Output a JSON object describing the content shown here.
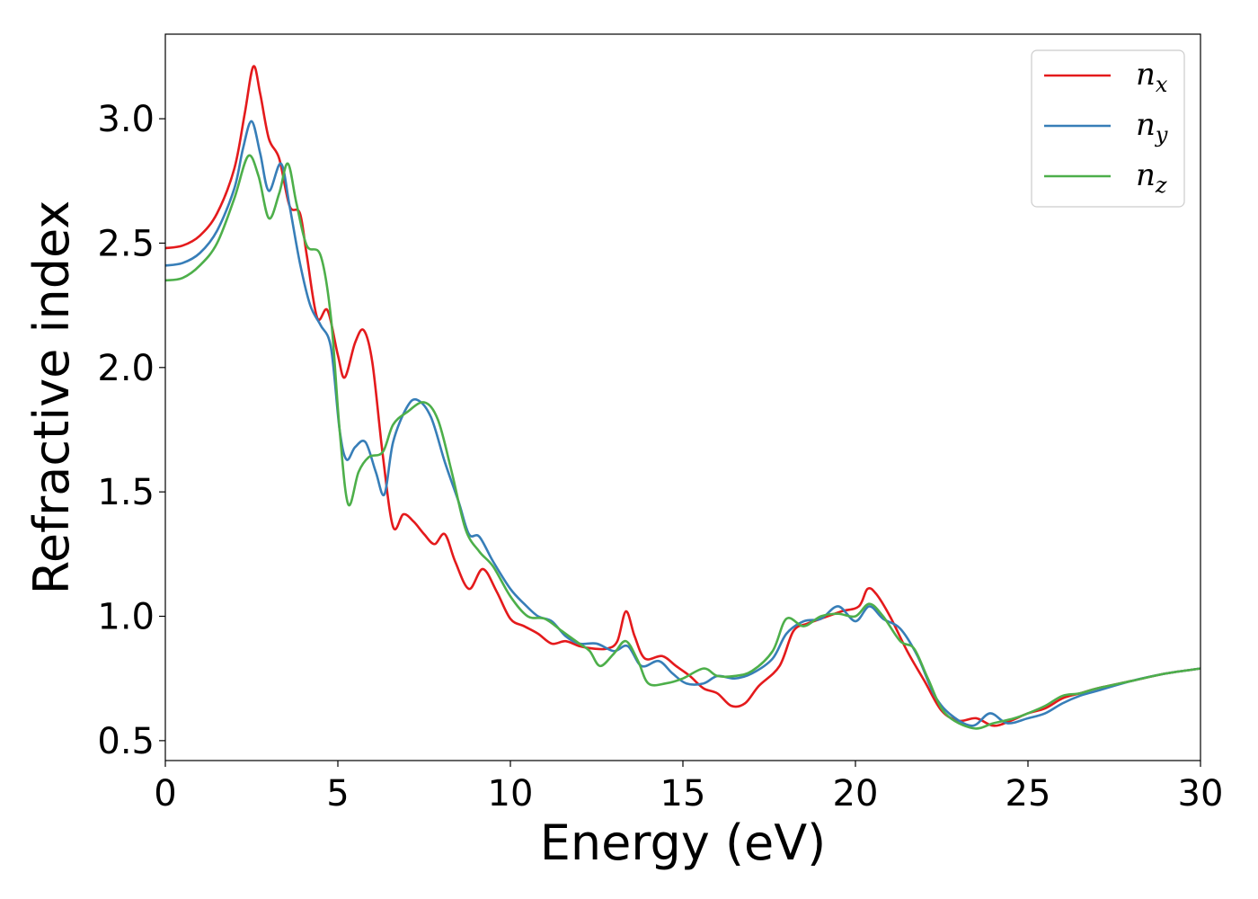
{
  "chart_data": {
    "type": "line",
    "xlabel": "Energy (eV)",
    "ylabel": "Refractive index",
    "xlim": [
      0,
      30
    ],
    "ylim": [
      0.42,
      3.34
    ],
    "xticks": [
      0,
      5,
      10,
      15,
      20,
      25,
      30
    ],
    "xtick_labels": [
      "0",
      "5",
      "10",
      "15",
      "20",
      "25",
      "30"
    ],
    "yticks": [
      0.5,
      1.0,
      1.5,
      2.0,
      2.5,
      3.0
    ],
    "ytick_labels": [
      "0.5",
      "1.0",
      "1.5",
      "2.0",
      "2.5",
      "3.0"
    ],
    "grid": false,
    "legend_position": "top-right",
    "series": [
      {
        "name": "n_x",
        "legend_main": "n",
        "legend_sub": "x",
        "color": "#e41a1c",
        "points": [
          [
            0,
            2.48
          ],
          [
            0.5,
            2.49
          ],
          [
            1,
            2.53
          ],
          [
            1.5,
            2.62
          ],
          [
            2,
            2.8
          ],
          [
            2.3,
            3.02
          ],
          [
            2.55,
            3.21
          ],
          [
            2.75,
            3.1
          ],
          [
            3,
            2.92
          ],
          [
            3.3,
            2.84
          ],
          [
            3.6,
            2.65
          ],
          [
            3.9,
            2.62
          ],
          [
            4.1,
            2.45
          ],
          [
            4.4,
            2.2
          ],
          [
            4.7,
            2.23
          ],
          [
            5,
            2.05
          ],
          [
            5.2,
            1.96
          ],
          [
            5.5,
            2.1
          ],
          [
            5.75,
            2.15
          ],
          [
            6,
            2.02
          ],
          [
            6.3,
            1.65
          ],
          [
            6.6,
            1.36
          ],
          [
            6.9,
            1.41
          ],
          [
            7.2,
            1.38
          ],
          [
            7.5,
            1.33
          ],
          [
            7.8,
            1.29
          ],
          [
            8.1,
            1.33
          ],
          [
            8.4,
            1.22
          ],
          [
            8.8,
            1.11
          ],
          [
            9.2,
            1.19
          ],
          [
            9.6,
            1.1
          ],
          [
            10,
            0.99
          ],
          [
            10.4,
            0.96
          ],
          [
            10.8,
            0.93
          ],
          [
            11.2,
            0.89
          ],
          [
            11.6,
            0.9
          ],
          [
            12,
            0.88
          ],
          [
            12.4,
            0.87
          ],
          [
            12.8,
            0.87
          ],
          [
            13.1,
            0.9
          ],
          [
            13.35,
            1.02
          ],
          [
            13.6,
            0.92
          ],
          [
            13.9,
            0.83
          ],
          [
            14.4,
            0.84
          ],
          [
            14.8,
            0.8
          ],
          [
            15.2,
            0.76
          ],
          [
            15.6,
            0.71
          ],
          [
            16,
            0.69
          ],
          [
            16.4,
            0.64
          ],
          [
            16.8,
            0.65
          ],
          [
            17.2,
            0.72
          ],
          [
            17.8,
            0.8
          ],
          [
            18.2,
            0.94
          ],
          [
            18.6,
            0.97
          ],
          [
            19,
            0.99
          ],
          [
            19.6,
            1.02
          ],
          [
            20.1,
            1.04
          ],
          [
            20.35,
            1.11
          ],
          [
            20.6,
            1.09
          ],
          [
            21,
            1.0
          ],
          [
            21.5,
            0.86
          ],
          [
            22,
            0.74
          ],
          [
            22.5,
            0.62
          ],
          [
            23,
            0.58
          ],
          [
            23.5,
            0.59
          ],
          [
            24,
            0.56
          ],
          [
            24.5,
            0.58
          ],
          [
            25,
            0.61
          ],
          [
            25.5,
            0.63
          ],
          [
            26,
            0.67
          ],
          [
            26.5,
            0.69
          ],
          [
            27,
            0.71
          ],
          [
            28,
            0.74
          ],
          [
            29,
            0.77
          ],
          [
            30,
            0.79
          ]
        ]
      },
      {
        "name": "n_y",
        "legend_main": "n",
        "legend_sub": "y",
        "color": "#377eb8",
        "points": [
          [
            0,
            2.41
          ],
          [
            0.5,
            2.42
          ],
          [
            1,
            2.46
          ],
          [
            1.5,
            2.55
          ],
          [
            2,
            2.72
          ],
          [
            2.25,
            2.88
          ],
          [
            2.5,
            2.99
          ],
          [
            2.75,
            2.86
          ],
          [
            3,
            2.71
          ],
          [
            3.35,
            2.82
          ],
          [
            3.6,
            2.65
          ],
          [
            3.9,
            2.42
          ],
          [
            4.2,
            2.25
          ],
          [
            4.5,
            2.17
          ],
          [
            4.8,
            2.08
          ],
          [
            5.05,
            1.75
          ],
          [
            5.25,
            1.63
          ],
          [
            5.5,
            1.68
          ],
          [
            5.8,
            1.7
          ],
          [
            6.1,
            1.58
          ],
          [
            6.35,
            1.49
          ],
          [
            6.6,
            1.7
          ],
          [
            7,
            1.84
          ],
          [
            7.3,
            1.87
          ],
          [
            7.7,
            1.8
          ],
          [
            8.1,
            1.62
          ],
          [
            8.5,
            1.46
          ],
          [
            8.8,
            1.33
          ],
          [
            9.1,
            1.32
          ],
          [
            9.5,
            1.22
          ],
          [
            10,
            1.11
          ],
          [
            10.4,
            1.05
          ],
          [
            10.8,
            1.0
          ],
          [
            11.2,
            0.98
          ],
          [
            11.6,
            0.92
          ],
          [
            12,
            0.89
          ],
          [
            12.5,
            0.89
          ],
          [
            13,
            0.86
          ],
          [
            13.4,
            0.88
          ],
          [
            13.8,
            0.8
          ],
          [
            14.3,
            0.82
          ],
          [
            14.7,
            0.77
          ],
          [
            15.1,
            0.73
          ],
          [
            15.6,
            0.73
          ],
          [
            16,
            0.76
          ],
          [
            16.5,
            0.75
          ],
          [
            17,
            0.77
          ],
          [
            17.6,
            0.83
          ],
          [
            18,
            0.93
          ],
          [
            18.5,
            0.98
          ],
          [
            19,
            0.99
          ],
          [
            19.5,
            1.04
          ],
          [
            20,
            0.98
          ],
          [
            20.4,
            1.04
          ],
          [
            20.8,
            0.99
          ],
          [
            21.3,
            0.95
          ],
          [
            21.8,
            0.84
          ],
          [
            22.3,
            0.68
          ],
          [
            22.8,
            0.6
          ],
          [
            23.4,
            0.56
          ],
          [
            23.9,
            0.61
          ],
          [
            24.4,
            0.57
          ],
          [
            25,
            0.59
          ],
          [
            25.5,
            0.61
          ],
          [
            26,
            0.65
          ],
          [
            26.5,
            0.68
          ],
          [
            27,
            0.7
          ],
          [
            28,
            0.74
          ],
          [
            29,
            0.77
          ],
          [
            30,
            0.79
          ]
        ]
      },
      {
        "name": "n_z",
        "legend_main": "n",
        "legend_sub": "z",
        "color": "#4daf4a",
        "points": [
          [
            0,
            2.35
          ],
          [
            0.5,
            2.36
          ],
          [
            1,
            2.41
          ],
          [
            1.5,
            2.5
          ],
          [
            2,
            2.68
          ],
          [
            2.4,
            2.85
          ],
          [
            2.7,
            2.77
          ],
          [
            3,
            2.6
          ],
          [
            3.3,
            2.7
          ],
          [
            3.55,
            2.82
          ],
          [
            3.8,
            2.66
          ],
          [
            4.1,
            2.49
          ],
          [
            4.5,
            2.45
          ],
          [
            4.8,
            2.2
          ],
          [
            5.05,
            1.75
          ],
          [
            5.3,
            1.45
          ],
          [
            5.6,
            1.58
          ],
          [
            5.9,
            1.64
          ],
          [
            6.3,
            1.66
          ],
          [
            6.6,
            1.77
          ],
          [
            7,
            1.82
          ],
          [
            7.5,
            1.86
          ],
          [
            7.9,
            1.79
          ],
          [
            8.3,
            1.58
          ],
          [
            8.7,
            1.35
          ],
          [
            9.1,
            1.26
          ],
          [
            9.5,
            1.2
          ],
          [
            10,
            1.08
          ],
          [
            10.5,
            1.0
          ],
          [
            11,
            0.99
          ],
          [
            11.5,
            0.94
          ],
          [
            12,
            0.89
          ],
          [
            12.3,
            0.86
          ],
          [
            12.6,
            0.8
          ],
          [
            13,
            0.85
          ],
          [
            13.35,
            0.9
          ],
          [
            13.7,
            0.82
          ],
          [
            14,
            0.73
          ],
          [
            14.5,
            0.73
          ],
          [
            15,
            0.75
          ],
          [
            15.6,
            0.79
          ],
          [
            16,
            0.76
          ],
          [
            16.5,
            0.76
          ],
          [
            17,
            0.78
          ],
          [
            17.6,
            0.86
          ],
          [
            18,
            0.99
          ],
          [
            18.5,
            0.96
          ],
          [
            19,
            1.0
          ],
          [
            19.5,
            1.01
          ],
          [
            20,
            1.0
          ],
          [
            20.4,
            1.05
          ],
          [
            20.8,
            1.0
          ],
          [
            21.3,
            0.9
          ],
          [
            21.7,
            0.87
          ],
          [
            22.1,
            0.75
          ],
          [
            22.6,
            0.61
          ],
          [
            23.4,
            0.55
          ],
          [
            24,
            0.57
          ],
          [
            24.6,
            0.59
          ],
          [
            25,
            0.61
          ],
          [
            25.5,
            0.64
          ],
          [
            26,
            0.68
          ],
          [
            26.5,
            0.69
          ],
          [
            27,
            0.71
          ],
          [
            28,
            0.74
          ],
          [
            29,
            0.77
          ],
          [
            30,
            0.79
          ]
        ]
      }
    ]
  }
}
